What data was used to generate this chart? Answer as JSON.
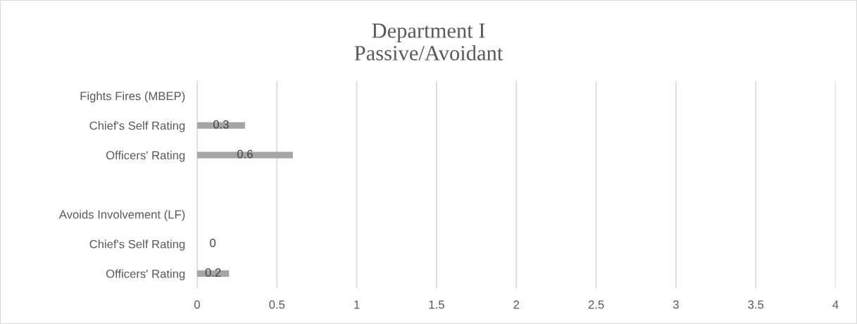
{
  "chart_data": {
    "type": "bar",
    "orientation": "horizontal",
    "title": "Department I\nPassive/Avoidant",
    "categories": [
      "Fights Fires (MBEP)",
      "Chief's Self Rating",
      "Officers' Rating",
      null,
      "Avoids Involvement (LF)",
      "Chief's Self Rating",
      "Officers' Rating"
    ],
    "values": [
      null,
      0.3,
      0.6,
      null,
      null,
      0,
      0.2
    ],
    "color": "#a5a5a5",
    "xlim": [
      0,
      4
    ],
    "xticks": [
      0,
      0.5,
      1,
      1.5,
      2,
      2.5,
      3,
      3.5,
      4
    ],
    "grid": "x",
    "data_labels": true
  }
}
